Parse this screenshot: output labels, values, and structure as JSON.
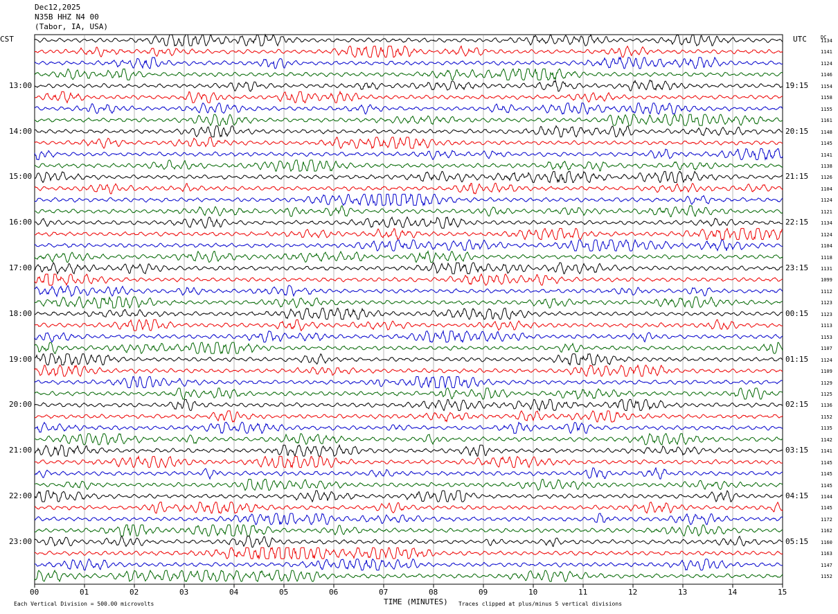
{
  "header": {
    "date": "Dec12,2025",
    "station": "N35B HHZ N4 00",
    "location": "(Tabor, IA, USA)"
  },
  "left_axis_title": "CST",
  "right_axis_title": "UTC",
  "dc_title": "DC",
  "footer": {
    "scale": "Each Vertical Division =  500.00 microvolts",
    "xlabel": "TIME (MINUTES)",
    "clip": "Traces clipped at plus/minus 5 vertical divisions"
  },
  "colors": {
    "black": "#000000",
    "red": "#ee0000",
    "blue": "#0000cc",
    "green": "#006600",
    "grid": "#888888"
  },
  "chart_data": {
    "type": "line",
    "title": "Dec12,2025 N35B HHZ N4 00 (Tabor, IA, USA)",
    "xlabel": "TIME (MINUTES)",
    "xlim": [
      0,
      15
    ],
    "x_ticks": [
      "00",
      "01",
      "02",
      "03",
      "04",
      "05",
      "06",
      "07",
      "08",
      "09",
      "10",
      "11",
      "12",
      "13",
      "14",
      "15"
    ],
    "trace_colors_cycle": [
      "black",
      "red",
      "blue",
      "green"
    ],
    "left_labels_cst": [
      "13:00",
      "14:00",
      "15:00",
      "16:00",
      "17:00",
      "18:00",
      "19:00",
      "20:00",
      "21:00",
      "22:00",
      "23:00"
    ],
    "right_labels_utc": [
      "19:15",
      "20:15",
      "21:15",
      "22:15",
      "23:15",
      "00:15",
      "01:15",
      "02:15",
      "03:15",
      "04:15",
      "05:15"
    ],
    "dc_offsets": [
      1134,
      1141,
      1124,
      1146,
      1154,
      1158,
      1155,
      1161,
      1148,
      1145,
      1141,
      1138,
      1126,
      1104,
      1124,
      1121,
      1134,
      1124,
      1104,
      1118,
      1131,
      1099,
      1112,
      1123,
      1123,
      1113,
      1153,
      1107,
      1124,
      1109,
      1129,
      1125,
      1136,
      1152,
      1135,
      1142,
      1141,
      1145,
      1145,
      1145,
      1144,
      1145,
      1172,
      1162,
      1160,
      1163,
      1147,
      1152
    ],
    "grid": true,
    "scale_microvolts_per_division": 500.0,
    "clip_divisions": 5
  }
}
